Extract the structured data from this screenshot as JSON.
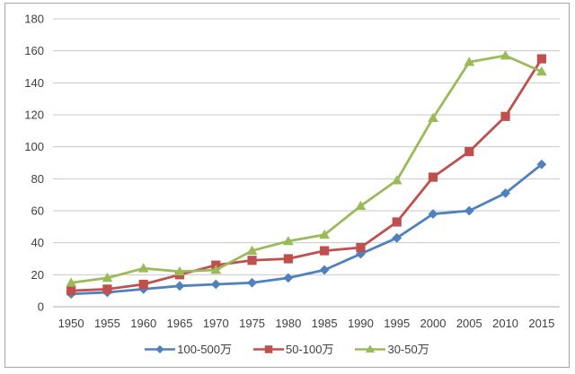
{
  "chart_data": {
    "type": "line",
    "title": "",
    "xlabel": "",
    "ylabel": "",
    "categories": [
      "1950",
      "1955",
      "1960",
      "1965",
      "1970",
      "1975",
      "1980",
      "1985",
      "1990",
      "1995",
      "2000",
      "2005",
      "2010",
      "2015"
    ],
    "series": [
      {
        "name": "100-500万",
        "color": "#4F81BD",
        "marker": "diamond",
        "values": [
          8,
          9,
          11,
          13,
          14,
          15,
          18,
          23,
          33,
          43,
          58,
          60,
          71,
          89
        ]
      },
      {
        "name": "50-100万",
        "color": "#C0504D",
        "marker": "square",
        "values": [
          10,
          11,
          14,
          20,
          26,
          29,
          30,
          35,
          37,
          53,
          81,
          97,
          119,
          155
        ]
      },
      {
        "name": "30-50万",
        "color": "#9BBB59",
        "marker": "triangle",
        "values": [
          15,
          18,
          24,
          22,
          23,
          35,
          41,
          45,
          63,
          79,
          118,
          153,
          157,
          147
        ]
      }
    ],
    "ylim": [
      0,
      180
    ],
    "ytick_step": 20,
    "ytick_labels": [
      "0",
      "20",
      "40",
      "60",
      "80",
      "100",
      "120",
      "140",
      "160",
      "180"
    ],
    "grid": "horizontal",
    "legend_position": "bottom",
    "legend_entries": [
      "100-500万",
      "50-100万",
      "30-50万"
    ],
    "colors": {
      "grid": "#C9C9C9",
      "baseline": "#ACACAC",
      "text": "#3F3F3F",
      "frame_border": "#A6A6A6",
      "background": "#FFFFFF"
    }
  }
}
